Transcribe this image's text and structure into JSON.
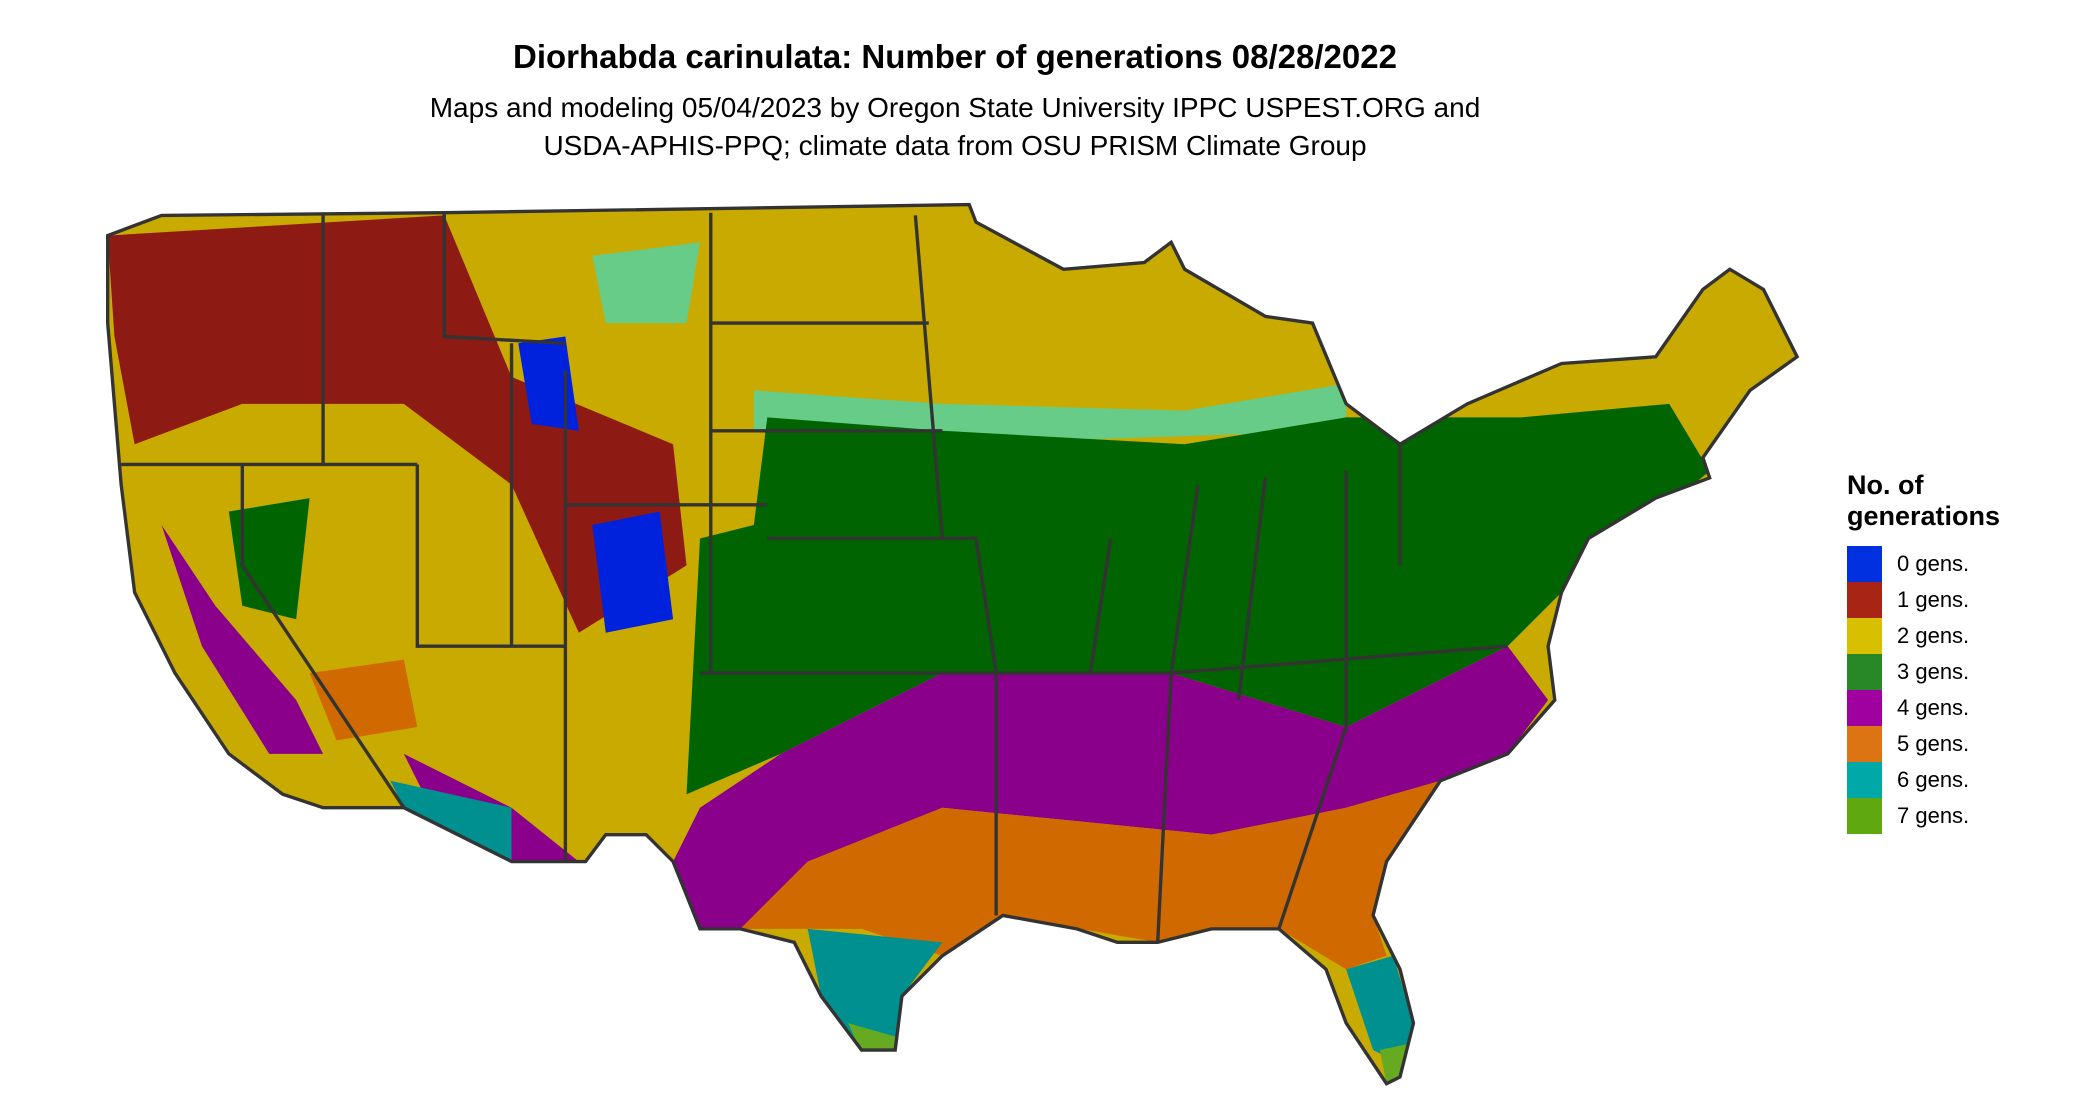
{
  "title": "Diorhabda carinulata: Number of generations 08/28/2022",
  "subtitle_line1": "Maps and modeling 05/04/2023 by Oregon State University IPPC USPEST.ORG and",
  "subtitle_line2": "USDA-APHIS-PPQ; climate data from OSU PRISM Climate Group",
  "legend": {
    "title_line1": "No. of",
    "title_line2": "generations",
    "items": [
      {
        "label": "0 gens.",
        "color": "#0030e0"
      },
      {
        "label": "1 gens.",
        "color": "#a82515"
      },
      {
        "label": "2 gens.",
        "color": "#d8c000"
      },
      {
        "label": "3 gens.",
        "color": "#288828"
      },
      {
        "label": "4 gens.",
        "color": "#a000a0"
      },
      {
        "label": "5 gens.",
        "color": "#dc7414"
      },
      {
        "label": "6 gens.",
        "color": "#00a8a8"
      },
      {
        "label": "7 gens.",
        "color": "#60a810"
      }
    ]
  },
  "map_colors": {
    "zero": "#0022dd",
    "one": "#8e1a14",
    "two": "#c9aa00",
    "three": "#006400",
    "three_light": "#66cc88",
    "four": "#8b008b",
    "four_light": "#ee22ee",
    "five": "#d06a00",
    "six": "#009090",
    "six_light": "#00e0e0",
    "seven": "#66aa22",
    "borders": "#333333"
  }
}
